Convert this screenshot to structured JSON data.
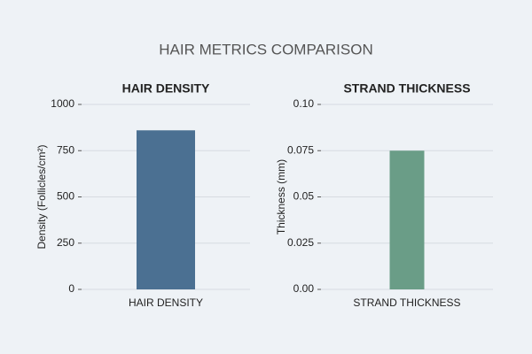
{
  "title": "HAIR METRICS COMPARISON",
  "chart_data": [
    {
      "type": "bar",
      "title": "HAIR DENSITY",
      "ylabel": "Density (Follicles/cm²)",
      "categories": [
        "HAIR DENSITY"
      ],
      "values": [
        860
      ],
      "color": "#4b7092",
      "ylim": [
        0,
        1000
      ],
      "yticks": [
        0,
        250,
        500,
        750,
        1000
      ],
      "grid": true
    },
    {
      "type": "bar",
      "title": "STRAND THICKNESS",
      "ylabel": "Thickness (mm)",
      "categories": [
        "STRAND THICKNESS"
      ],
      "values": [
        0.075
      ],
      "color": "#6a9d87",
      "ylim": [
        0,
        0.1
      ],
      "yticks": [
        {
          "value": 0,
          "label": "0.00"
        },
        0.025,
        {
          "value": 0.05,
          "label": "0.05"
        },
        0.075,
        {
          "value": 0.1,
          "label": "0.10"
        }
      ],
      "grid": true
    }
  ]
}
